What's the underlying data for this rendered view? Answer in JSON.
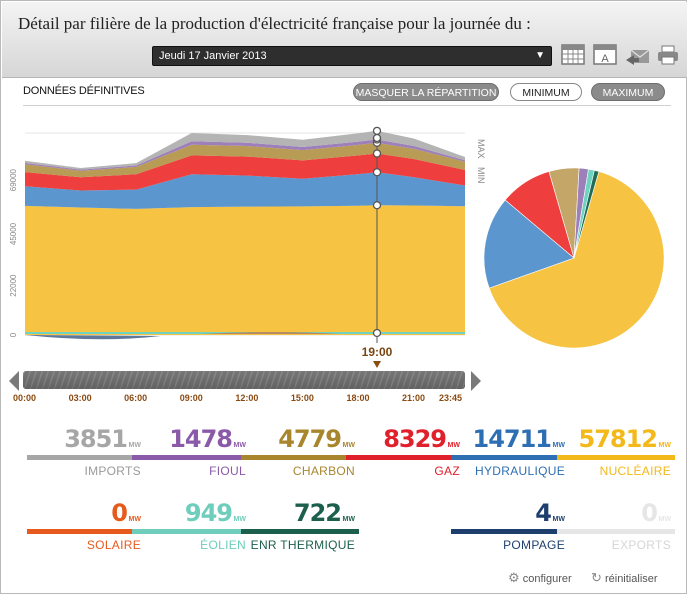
{
  "header": {
    "title": "Détail par filière de la production d'électricité française pour la journée du :",
    "date_selected": "Jeudi 17 Janvier 2013"
  },
  "toolbar": {
    "subtitle": "DONNÉES DÉFINITIVES",
    "masquer_label": "MASQUER LA RÉPARTITION",
    "minimum_label": "MINIMUM",
    "maximum_label": "MAXIMUM"
  },
  "chart": {
    "max_label": "MAX",
    "min_label": "MIN",
    "cursor_time": "19:00",
    "y_ticks": [
      "0",
      "22000",
      "45000",
      "69000"
    ],
    "x_ticks": [
      "00:00",
      "03:00",
      "06:00",
      "09:00",
      "12:00",
      "15:00",
      "18:00",
      "21:00",
      "23:45"
    ]
  },
  "chart_data": {
    "type": "area",
    "ylim": [
      0,
      90000
    ],
    "x": [
      "00:00",
      "03:00",
      "06:00",
      "09:00",
      "12:00",
      "15:00",
      "18:00",
      "19:00",
      "21:00",
      "23:45"
    ],
    "series": [
      {
        "name": "NUCLÉAIRE",
        "color": "#f6c343",
        "values": [
          57500,
          56800,
          56200,
          57000,
          57200,
          57300,
          57600,
          57812,
          57700,
          57400
        ]
      },
      {
        "name": "HYDRAULIQUE",
        "color": "#5b96cf",
        "values": [
          8800,
          7600,
          8600,
          14600,
          13800,
          12300,
          14100,
          14711,
          12600,
          9200
        ]
      },
      {
        "name": "GAZ",
        "color": "#ee3e3e",
        "values": [
          6300,
          5900,
          6800,
          8400,
          8500,
          8200,
          8300,
          8329,
          8100,
          6900
        ]
      },
      {
        "name": "CHARBON",
        "color": "#b89b55",
        "values": [
          3500,
          2900,
          3300,
          4800,
          4700,
          4600,
          4700,
          4779,
          4500,
          3700
        ]
      },
      {
        "name": "FIOUL",
        "color": "#9d7fb9",
        "values": [
          600,
          500,
          600,
          1500,
          1450,
          1350,
          1450,
          1478,
          1300,
          700
        ]
      },
      {
        "name": "IMPORTS",
        "color": "#b4b4b4",
        "values": [
          900,
          700,
          1100,
          3700,
          3400,
          3200,
          3700,
          3851,
          3300,
          1400
        ]
      }
    ],
    "pie": [
      {
        "name": "NUCLÉAIRE",
        "value": 57812,
        "color": "#f6c343"
      },
      {
        "name": "HYDRAULIQUE",
        "value": 14711,
        "color": "#5b96cf"
      },
      {
        "name": "GAZ",
        "value": 8329,
        "color": "#ee3e3e"
      },
      {
        "name": "CHARBON",
        "value": 4779,
        "color": "#c4a668"
      },
      {
        "name": "FIOUL",
        "value": 1478,
        "color": "#9d7fb9"
      },
      {
        "name": "ÉOLIEN",
        "value": 949,
        "color": "#6fd3c2"
      },
      {
        "name": "ENR THERMIQUE",
        "value": 722,
        "color": "#1f6e55"
      }
    ]
  },
  "stats": [
    {
      "value": "3851",
      "unit": "MW",
      "label": "IMPORTS",
      "color": "#a6a6a6",
      "label_color": "#9a9a9a"
    },
    {
      "value": "1478",
      "unit": "MW",
      "label": "FIOUL",
      "color": "#8a5aa8",
      "label_color": "#8a5aa8"
    },
    {
      "value": "4779",
      "unit": "MW",
      "label": "CHARBON",
      "color": "#a8862e",
      "label_color": "#a8862e"
    },
    {
      "value": "8329",
      "unit": "MW",
      "label": "GAZ",
      "color": "#e0202a",
      "label_color": "#e0202a"
    },
    {
      "value": "14711",
      "unit": "MW",
      "label": "HYDRAULIQUE",
      "color": "#2e6fb3",
      "label_color": "#2e6fb3"
    },
    {
      "value": "57812",
      "unit": "MW",
      "label": "NUCLÉAIRE",
      "color": "#f3b819",
      "label_color": "#f3b819"
    },
    {
      "value": "0",
      "unit": "MW",
      "label": "SOLAIRE",
      "color": "#e65a1e",
      "label_color": "#e65a1e"
    },
    {
      "value": "949",
      "unit": "MW",
      "label": "ÉOLIEN",
      "color": "#6fcdbb",
      "label_color": "#6fcdbb"
    },
    {
      "value": "722",
      "unit": "MW",
      "label": "ENR THERMIQUE",
      "color": "#1c5f4d",
      "label_color": "#1c5f4d"
    },
    {
      "value": "4",
      "unit": "MW",
      "label": "POMPAGE",
      "color": "#1e3f6e",
      "label_color": "#1e3f6e"
    },
    {
      "value": "0",
      "unit": "MW",
      "label": "EXPORTS",
      "color": "#e6e6e6",
      "label_color": "#d6d6d6"
    }
  ],
  "footer": {
    "configurer": "configurer",
    "reinitialiser": "réinitialiser"
  }
}
